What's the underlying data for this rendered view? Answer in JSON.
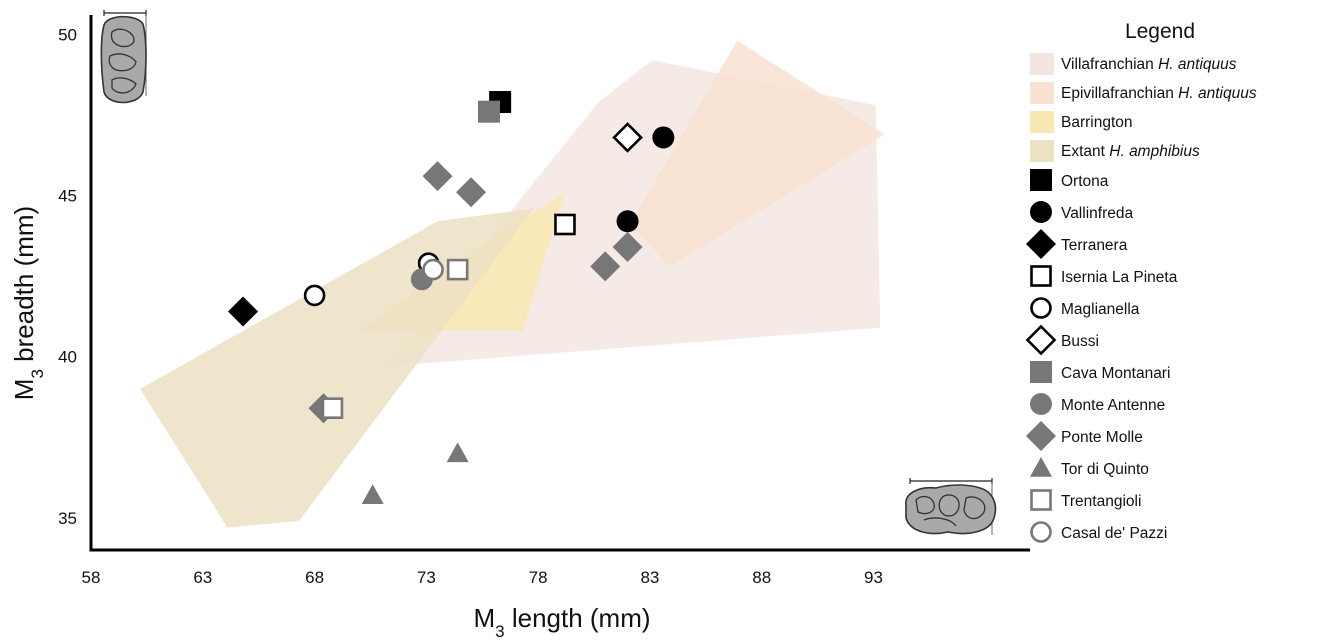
{
  "chart_data": {
    "type": "scatter",
    "xlabel": {
      "main": "M",
      "sub": "3",
      "rest": " length (mm)"
    },
    "ylabel": {
      "main": "M",
      "sub": "3",
      "rest": " breadth (mm)"
    },
    "xlim": [
      58,
      100
    ],
    "ylim": [
      34,
      50.6
    ],
    "xticks": [
      "58",
      "63",
      "68",
      "73",
      "78",
      "83",
      "88",
      "93"
    ],
    "yticks": [
      "35",
      "40",
      "45",
      "50"
    ],
    "grid": false,
    "legend_position": "right",
    "legend_title": "Legend",
    "regions": [
      {
        "name": "Villafranchian",
        "name_italic": "H. antiquus",
        "color": "#f3e6e1",
        "points": [
          [
            71.2,
            39.7
          ],
          [
            80.7,
            47.9
          ],
          [
            83.1,
            49.2
          ],
          [
            93.1,
            47.8
          ],
          [
            93.3,
            40.9
          ]
        ]
      },
      {
        "name": "Epivillafranchian",
        "name_italic": "H. antiquus",
        "color": "#f9e2d1",
        "points": [
          [
            82.1,
            44.1
          ],
          [
            86.9,
            49.8
          ],
          [
            93.5,
            46.9
          ],
          [
            83.9,
            42.8
          ]
        ]
      },
      {
        "name": "Barrington",
        "name_italic": "",
        "color": "#f9e8b1",
        "points": [
          [
            70.0,
            40.8
          ],
          [
            74.5,
            43.0
          ],
          [
            79.2,
            45.1
          ],
          [
            77.3,
            40.8
          ]
        ]
      },
      {
        "name": "Extant",
        "name_italic": "H. amphibius",
        "color": "#ece1c3",
        "points": [
          [
            60.2,
            39.0
          ],
          [
            64.1,
            34.7
          ],
          [
            67.3,
            34.9
          ],
          [
            77.8,
            44.6
          ],
          [
            73.5,
            44.2
          ]
        ]
      }
    ],
    "series": [
      {
        "name": "Ortona",
        "marker": "square",
        "style": "filled",
        "color": "#000000",
        "points": [
          {
            "x": 76.3,
            "y": 47.9
          }
        ]
      },
      {
        "name": "Vallinfreda",
        "marker": "circle",
        "style": "filled",
        "color": "#000000",
        "points": [
          {
            "x": 83.6,
            "y": 46.8
          },
          {
            "x": 82.0,
            "y": 44.2
          }
        ]
      },
      {
        "name": "Terranera",
        "marker": "diamond",
        "style": "filled",
        "color": "#000000",
        "points": [
          {
            "x": 64.8,
            "y": 41.4
          }
        ]
      },
      {
        "name": "Isernia La Pineta",
        "marker": "square",
        "style": "open",
        "color": "#000000",
        "points": [
          {
            "x": 79.2,
            "y": 44.1
          }
        ]
      },
      {
        "name": "Maglianella",
        "marker": "circle",
        "style": "open",
        "color": "#000000",
        "points": [
          {
            "x": 68.0,
            "y": 41.9
          },
          {
            "x": 73.1,
            "y": 42.9
          }
        ]
      },
      {
        "name": "Bussi",
        "marker": "diamond",
        "style": "open",
        "color": "#000000",
        "points": [
          {
            "x": 82.0,
            "y": 46.8
          }
        ]
      },
      {
        "name": "Cava Montanari",
        "marker": "square",
        "style": "filled",
        "color": "#777777",
        "points": [
          {
            "x": 75.8,
            "y": 47.6
          }
        ]
      },
      {
        "name": "Monte Antenne",
        "marker": "circle",
        "style": "filled",
        "color": "#777777",
        "points": [
          {
            "x": 72.8,
            "y": 42.4
          }
        ]
      },
      {
        "name": "Ponte Molle",
        "marker": "diamond",
        "style": "filled",
        "color": "#777777",
        "points": [
          {
            "x": 73.5,
            "y": 45.6
          },
          {
            "x": 75.0,
            "y": 45.1
          },
          {
            "x": 82.0,
            "y": 43.4
          },
          {
            "x": 81.0,
            "y": 42.8
          },
          {
            "x": 68.4,
            "y": 38.4
          }
        ]
      },
      {
        "name": "Tor di Quinto",
        "marker": "triangle",
        "style": "filled",
        "color": "#777777",
        "points": [
          {
            "x": 74.4,
            "y": 37.0
          },
          {
            "x": 70.6,
            "y": 35.7
          }
        ]
      },
      {
        "name": "Trentangioli",
        "marker": "square",
        "style": "open",
        "color": "#777777",
        "points": [
          {
            "x": 74.4,
            "y": 42.7
          },
          {
            "x": 68.8,
            "y": 38.4
          }
        ]
      },
      {
        "name": "Casal de' Pazzi",
        "marker": "circle",
        "style": "open",
        "color": "#777777",
        "points": [
          {
            "x": 73.3,
            "y": 42.7
          }
        ]
      }
    ]
  }
}
